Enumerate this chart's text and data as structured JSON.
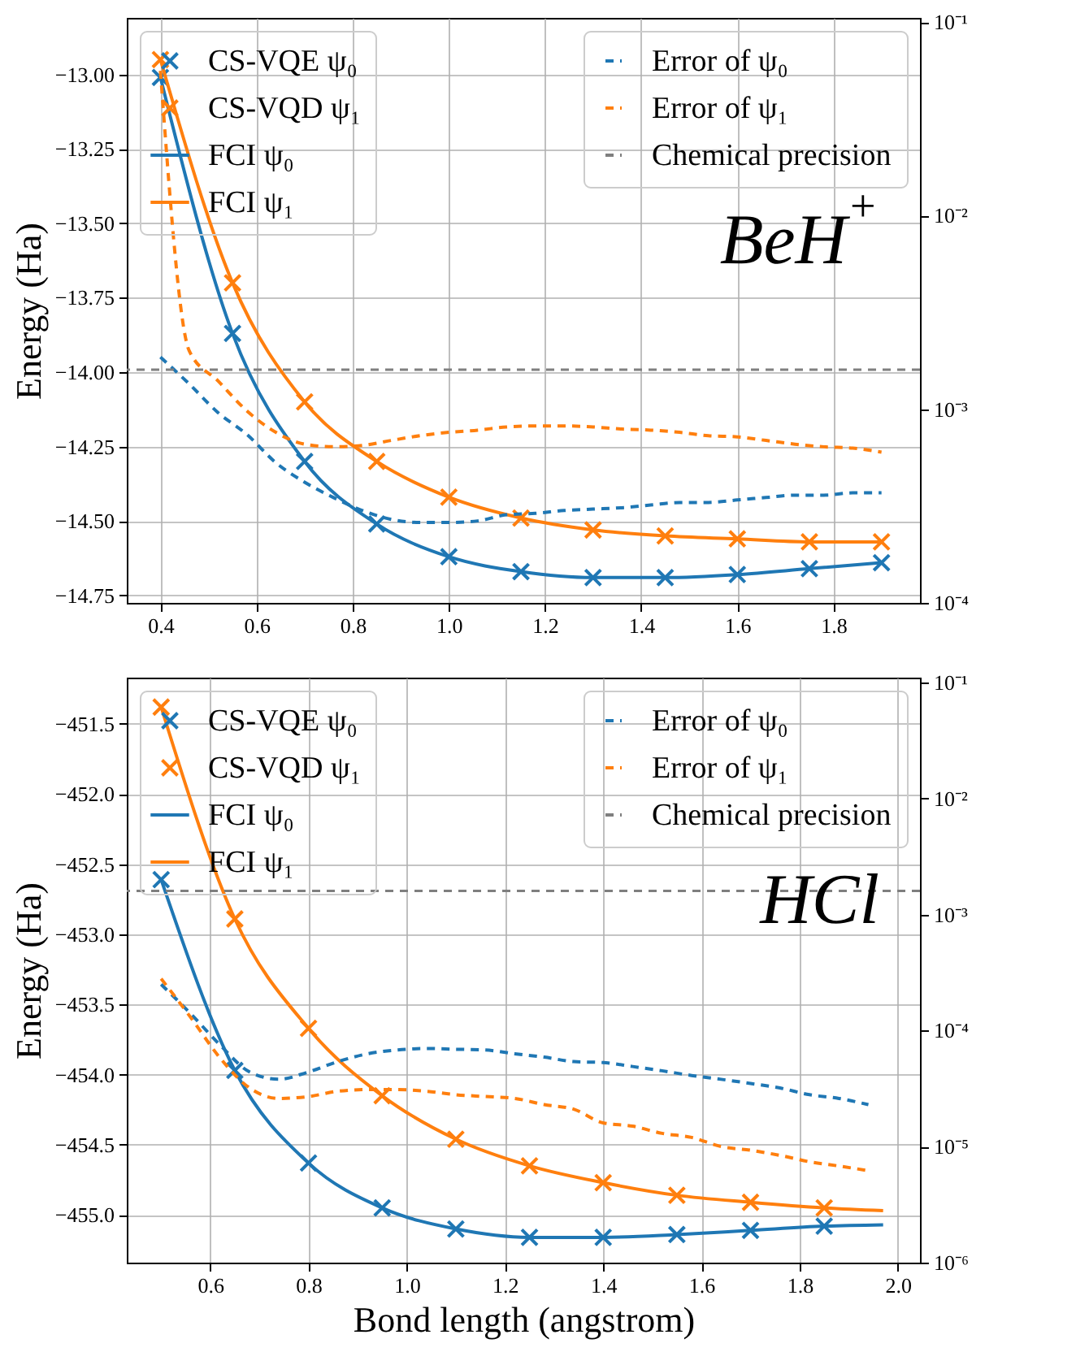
{
  "chart_data": [
    {
      "type": "line",
      "ylabel": "Energy (Ha)",
      "annotations": [
        "BeH$^{+}$"
      ],
      "grid": true,
      "legend": "top",
      "log": "y2",
      "xlim": [
        0.33,
        1.98
      ],
      "xticks": [
        {
          "value": 0.4,
          "label": "0.4"
        },
        {
          "value": 0.6,
          "label": "0.6"
        },
        {
          "value": 0.8,
          "label": "0.8"
        },
        {
          "value": 1.0,
          "label": "1.0"
        },
        {
          "value": 1.2,
          "label": "1.2"
        },
        {
          "value": 1.4,
          "label": "1.4"
        },
        {
          "value": 1.6,
          "label": "1.6"
        },
        {
          "value": 1.8,
          "label": "1.8"
        }
      ],
      "ylim": [
        -14.775,
        -12.81
      ],
      "yticks": [
        {
          "value": -13.0,
          "label": "−13.00"
        },
        {
          "value": -13.25,
          "label": "−13.25"
        },
        {
          "value": -13.5,
          "label": "−13.50"
        },
        {
          "value": -13.75,
          "label": "−13.75"
        },
        {
          "value": -14.0,
          "label": "−14.00"
        },
        {
          "value": -14.25,
          "label": "−14.25"
        },
        {
          "value": -14.5,
          "label": "−14.50"
        },
        {
          "value": -14.75,
          "label": "−14.75"
        }
      ],
      "y2lim": [
        0.0001,
        0.105
      ],
      "y2ticks": [
        {
          "value": 0.1,
          "label": "10⁻¹"
        },
        {
          "value": 0.01,
          "label": "10⁻²"
        },
        {
          "value": 0.001,
          "label": "10⁻³"
        },
        {
          "value": 0.0001,
          "label": "10⁻⁴"
        }
      ],
      "ref_lines": [
        {
          "axis": "y2",
          "value": 0.0016,
          "label": "Chemical precision",
          "color": "#7f7f7f",
          "line_style": "dashed"
        }
      ],
      "series": [
        {
          "name": "CS-VQE ψ₀",
          "type": "scatter",
          "marker": "cross",
          "color": "#1f77b4",
          "x": [
            0.4,
            0.55,
            0.7,
            0.85,
            1.0,
            1.15,
            1.3,
            1.45,
            1.6,
            1.75,
            1.9
          ],
          "values": [
            -13.01,
            -13.87,
            -14.3,
            -14.51,
            -14.62,
            -14.67,
            -14.69,
            -14.69,
            -14.68,
            -14.66,
            -14.64
          ]
        },
        {
          "name": "CS-VQD ψ₁",
          "type": "scatter",
          "marker": "cross",
          "color": "#ff7f0e",
          "x": [
            0.4,
            0.55,
            0.7,
            0.85,
            1.0,
            1.15,
            1.3,
            1.45,
            1.6,
            1.75,
            1.9
          ],
          "values": [
            -12.95,
            -13.7,
            -14.1,
            -14.3,
            -14.42,
            -14.49,
            -14.53,
            -14.55,
            -14.56,
            -14.57,
            -14.57
          ]
        },
        {
          "name": "FCI ψ₀",
          "type": "line",
          "line_style": "solid",
          "color": "#1f77b4",
          "x": [
            0.4,
            0.55,
            0.7,
            0.85,
            1.0,
            1.15,
            1.3,
            1.45,
            1.6,
            1.75,
            1.9
          ],
          "values": [
            -13.01,
            -13.87,
            -14.3,
            -14.51,
            -14.62,
            -14.67,
            -14.69,
            -14.69,
            -14.68,
            -14.66,
            -14.64
          ]
        },
        {
          "name": "FCI ψ₁",
          "type": "line",
          "line_style": "solid",
          "color": "#ff7f0e",
          "x": [
            0.4,
            0.55,
            0.7,
            0.85,
            1.0,
            1.15,
            1.3,
            1.45,
            1.6,
            1.75,
            1.9
          ],
          "values": [
            -12.95,
            -13.7,
            -14.1,
            -14.3,
            -14.42,
            -14.49,
            -14.53,
            -14.55,
            -14.56,
            -14.57,
            -14.57
          ]
        },
        {
          "name": "Error of ψ₀",
          "type": "line",
          "line_style": "dashed",
          "marker": "none",
          "axis": "y2",
          "color": "#1f77b4",
          "x": [
            0.4,
            0.46,
            0.52,
            0.58,
            0.64,
            0.7,
            0.76,
            0.82,
            0.88,
            0.94,
            1.0,
            1.06,
            1.12,
            1.18,
            1.24,
            1.3,
            1.36,
            1.42,
            1.48,
            1.54,
            1.6,
            1.66,
            1.72,
            1.78,
            1.84,
            1.9
          ],
          "values": [
            0.00186,
            0.00135,
            0.00096,
            0.00074,
            0.00053,
            0.00042,
            0.00035,
            0.0003,
            0.00027,
            0.00026,
            0.00026,
            0.000265,
            0.000285,
            0.00029,
            0.0003,
            0.000305,
            0.00031,
            0.00032,
            0.00033,
            0.00033,
            0.00034,
            0.00035,
            0.00036,
            0.00036,
            0.00037,
            0.00037
          ]
        },
        {
          "name": "Error of ψ₁",
          "type": "line",
          "line_style": "dashed",
          "marker": "none",
          "axis": "y2",
          "color": "#ff7f0e",
          "x": [
            0.4,
            0.46,
            0.52,
            0.58,
            0.64,
            0.7,
            0.76,
            0.82,
            0.88,
            0.94,
            1.0,
            1.06,
            1.12,
            1.18,
            1.24,
            1.3,
            1.36,
            1.42,
            1.48,
            1.54,
            1.6,
            1.66,
            1.72,
            1.78,
            1.84,
            1.9
          ],
          "values": [
            0.056,
            0.002,
            0.0014,
            0.00098,
            0.00076,
            0.00066,
            0.00064,
            0.00065,
            0.00069,
            0.00073,
            0.00076,
            0.00078,
            0.00081,
            0.00082,
            0.00082,
            0.00081,
            0.00079,
            0.00078,
            0.00076,
            0.00073,
            0.00072,
            0.00069,
            0.00066,
            0.00064,
            0.00063,
            0.0006
          ]
        }
      ]
    },
    {
      "type": "line",
      "xlabel": "Bond length (angstrom)",
      "ylabel": "Energy (Ha)",
      "annotations": [
        "HCl"
      ],
      "grid": true,
      "legend": "top",
      "log": "y2",
      "xlim": [
        0.43,
        2.045
      ],
      "xticks": [
        {
          "value": 0.6,
          "label": "0.6"
        },
        {
          "value": 0.8,
          "label": "0.8"
        },
        {
          "value": 1.0,
          "label": "1.0"
        },
        {
          "value": 1.2,
          "label": "1.2"
        },
        {
          "value": 1.4,
          "label": "1.4"
        },
        {
          "value": 1.6,
          "label": "1.6"
        },
        {
          "value": 1.8,
          "label": "1.8"
        },
        {
          "value": 2.0,
          "label": "2.0"
        }
      ],
      "ylim": [
        -455.34,
        -451.17
      ],
      "yticks": [
        {
          "value": -451.5,
          "label": "−451.5"
        },
        {
          "value": -452.0,
          "label": "−452.0"
        },
        {
          "value": -452.5,
          "label": "−452.5"
        },
        {
          "value": -453.0,
          "label": "−453.0"
        },
        {
          "value": -453.5,
          "label": "−453.5"
        },
        {
          "value": -454.0,
          "label": "−454.0"
        },
        {
          "value": -454.5,
          "label": "−454.5"
        },
        {
          "value": -455.0,
          "label": "−455.0"
        }
      ],
      "y2lim": [
        1e-06,
        0.11
      ],
      "y2ticks": [
        {
          "value": 0.1,
          "label": "10⁻¹"
        },
        {
          "value": 0.01,
          "label": "10⁻²"
        },
        {
          "value": 0.001,
          "label": "10⁻³"
        },
        {
          "value": 0.0001,
          "label": "10⁻⁴"
        },
        {
          "value": 1e-05,
          "label": "10⁻⁵"
        },
        {
          "value": 1e-06,
          "label": "10⁻⁶"
        }
      ],
      "ref_lines": [
        {
          "axis": "y2",
          "value": 0.0016,
          "label": "Chemical precision",
          "color": "#7f7f7f",
          "line_style": "dashed"
        }
      ],
      "series": [
        {
          "name": "CS-VQE ψ₀",
          "type": "scatter",
          "marker": "cross",
          "color": "#1f77b4",
          "x": [
            0.5,
            0.65,
            0.8,
            0.95,
            1.1,
            1.25,
            1.4,
            1.55,
            1.7,
            1.85
          ],
          "values": [
            -452.61,
            -453.97,
            -454.63,
            -454.95,
            -455.1,
            -455.16,
            -455.16,
            -455.14,
            -455.11,
            -455.08
          ]
        },
        {
          "name": "CS-VQD ψ₁",
          "type": "scatter",
          "marker": "cross",
          "color": "#ff7f0e",
          "x": [
            0.5,
            0.65,
            0.8,
            0.95,
            1.1,
            1.25,
            1.4,
            1.55,
            1.7,
            1.85
          ],
          "values": [
            -451.38,
            -452.89,
            -453.67,
            -454.15,
            -454.46,
            -454.65,
            -454.77,
            -454.86,
            -454.91,
            -454.95
          ]
        },
        {
          "name": "FCI ψ₀",
          "type": "line",
          "line_style": "solid",
          "color": "#1f77b4",
          "x": [
            0.5,
            0.65,
            0.8,
            0.95,
            1.1,
            1.25,
            1.4,
            1.55,
            1.7,
            1.85,
            1.97
          ],
          "values": [
            -452.61,
            -453.97,
            -454.63,
            -454.95,
            -455.1,
            -455.16,
            -455.16,
            -455.14,
            -455.11,
            -455.08,
            -455.07
          ]
        },
        {
          "name": "FCI ψ₁",
          "type": "line",
          "line_style": "solid",
          "color": "#ff7f0e",
          "x": [
            0.5,
            0.65,
            0.8,
            0.95,
            1.1,
            1.25,
            1.4,
            1.55,
            1.7,
            1.85,
            1.97
          ],
          "values": [
            -451.38,
            -452.89,
            -453.67,
            -454.15,
            -454.46,
            -454.65,
            -454.77,
            -454.86,
            -454.91,
            -454.95,
            -454.97
          ]
        },
        {
          "name": "Error of ψ₀",
          "type": "line",
          "line_style": "dashed",
          "marker": "none",
          "axis": "y2",
          "color": "#1f77b4",
          "x": [
            0.5,
            0.56,
            0.62,
            0.68,
            0.74,
            0.8,
            0.86,
            0.92,
            0.98,
            1.04,
            1.1,
            1.16,
            1.22,
            1.28,
            1.34,
            1.4,
            1.46,
            1.52,
            1.58,
            1.64,
            1.7,
            1.76,
            1.82,
            1.88,
            1.94
          ],
          "values": [
            0.00025,
            0.00014,
            7.5e-05,
            4.4e-05,
            3.8e-05,
            4.4e-05,
            5.4e-05,
            6.3e-05,
            6.8e-05,
            7e-05,
            6.9e-05,
            6.8e-05,
            6.3e-05,
            5.9e-05,
            5.4e-05,
            5.3e-05,
            4.9e-05,
            4.5e-05,
            4.1e-05,
            3.8e-05,
            3.5e-05,
            3.2e-05,
            2.8e-05,
            2.6e-05,
            2.3e-05
          ]
        },
        {
          "name": "Error of ψ₁",
          "type": "line",
          "line_style": "dashed",
          "marker": "none",
          "axis": "y2",
          "color": "#ff7f0e",
          "x": [
            0.5,
            0.56,
            0.62,
            0.68,
            0.74,
            0.8,
            0.86,
            0.92,
            0.98,
            1.04,
            1.1,
            1.16,
            1.22,
            1.28,
            1.34,
            1.4,
            1.46,
            1.52,
            1.58,
            1.64,
            1.7,
            1.76,
            1.82,
            1.88,
            1.94
          ],
          "values": [
            0.00028,
            0.00013,
            5.8e-05,
            3.2e-05,
            2.6e-05,
            2.7e-05,
            3e-05,
            3.1e-05,
            3.1e-05,
            3e-05,
            2.8e-05,
            2.7e-05,
            2.6e-05,
            2.3e-05,
            2.1e-05,
            1.6e-05,
            1.5e-05,
            1.3e-05,
            1.2e-05,
            1e-05,
            9.3e-06,
            8.4e-06,
            7.4e-06,
            6.8e-06,
            6.2e-06
          ]
        }
      ]
    }
  ]
}
